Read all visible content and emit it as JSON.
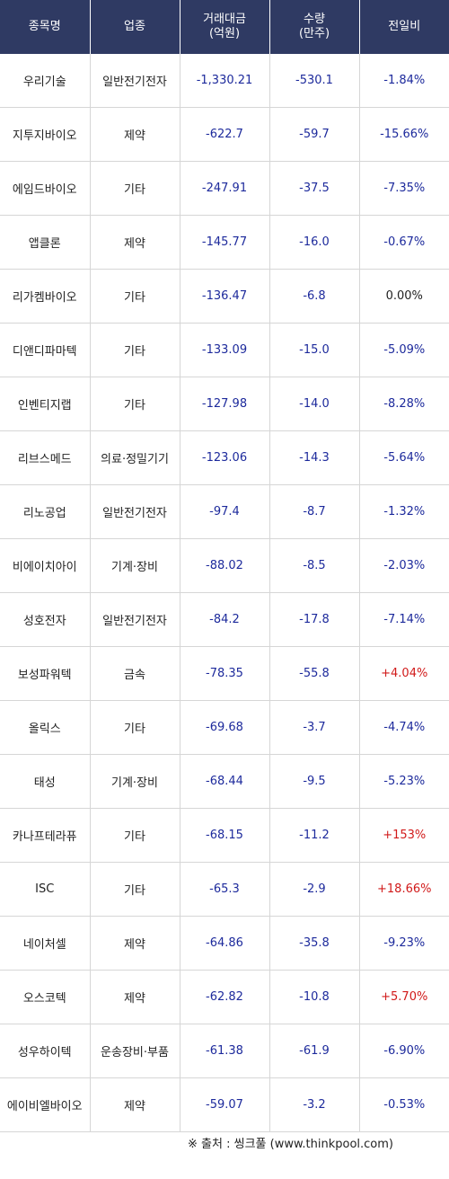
{
  "headers": [
    "종목명",
    "업종",
    "거래대금\n(억원)",
    "수량\n(만주)",
    "전일비"
  ],
  "rows": [
    {
      "name": "우리기술",
      "sector": "일반전기전자",
      "amount": "-1,330.21",
      "qty": "-530.1",
      "change": "-1.84%",
      "dir": "neg"
    },
    {
      "name": "지투지바이오",
      "sector": "제약",
      "amount": "-622.7",
      "qty": "-59.7",
      "change": "-15.66%",
      "dir": "neg"
    },
    {
      "name": "에임드바이오",
      "sector": "기타",
      "amount": "-247.91",
      "qty": "-37.5",
      "change": "-7.35%",
      "dir": "neg"
    },
    {
      "name": "앱클론",
      "sector": "제약",
      "amount": "-145.77",
      "qty": "-16.0",
      "change": "-0.67%",
      "dir": "neg"
    },
    {
      "name": "리가켐바이오",
      "sector": "기타",
      "amount": "-136.47",
      "qty": "-6.8",
      "change": "0.00%",
      "dir": "zero"
    },
    {
      "name": "디앤디파마텍",
      "sector": "기타",
      "amount": "-133.09",
      "qty": "-15.0",
      "change": "-5.09%",
      "dir": "neg"
    },
    {
      "name": "인벤티지랩",
      "sector": "기타",
      "amount": "-127.98",
      "qty": "-14.0",
      "change": "-8.28%",
      "dir": "neg"
    },
    {
      "name": "리브스메드",
      "sector": "의료·정밀기기",
      "amount": "-123.06",
      "qty": "-14.3",
      "change": "-5.64%",
      "dir": "neg"
    },
    {
      "name": "리노공업",
      "sector": "일반전기전자",
      "amount": "-97.4",
      "qty": "-8.7",
      "change": "-1.32%",
      "dir": "neg"
    },
    {
      "name": "비에이치아이",
      "sector": "기계·장비",
      "amount": "-88.02",
      "qty": "-8.5",
      "change": "-2.03%",
      "dir": "neg"
    },
    {
      "name": "성호전자",
      "sector": "일반전기전자",
      "amount": "-84.2",
      "qty": "-17.8",
      "change": "-7.14%",
      "dir": "neg"
    },
    {
      "name": "보성파워텍",
      "sector": "금속",
      "amount": "-78.35",
      "qty": "-55.8",
      "change": "+4.04%",
      "dir": "pos"
    },
    {
      "name": "올릭스",
      "sector": "기타",
      "amount": "-69.68",
      "qty": "-3.7",
      "change": "-4.74%",
      "dir": "neg"
    },
    {
      "name": "태성",
      "sector": "기계·장비",
      "amount": "-68.44",
      "qty": "-9.5",
      "change": "-5.23%",
      "dir": "neg"
    },
    {
      "name": "카나프테라퓨",
      "sector": "기타",
      "amount": "-68.15",
      "qty": "-11.2",
      "change": "+153%",
      "dir": "pos"
    },
    {
      "name": "ISC",
      "sector": "기타",
      "amount": "-65.3",
      "qty": "-2.9",
      "change": "+18.66%",
      "dir": "pos"
    },
    {
      "name": "네이처셀",
      "sector": "제약",
      "amount": "-64.86",
      "qty": "-35.8",
      "change": "-9.23%",
      "dir": "neg"
    },
    {
      "name": "오스코텍",
      "sector": "제약",
      "amount": "-62.82",
      "qty": "-10.8",
      "change": "+5.70%",
      "dir": "pos"
    },
    {
      "name": "성우하이텍",
      "sector": "운송장비·부품",
      "amount": "-61.38",
      "qty": "-61.9",
      "change": "-6.90%",
      "dir": "neg"
    },
    {
      "name": "에이비엘바이오",
      "sector": "제약",
      "amount": "-59.07",
      "qty": "-3.2",
      "change": "-0.53%",
      "dir": "neg"
    }
  ],
  "source": "※ 출처 : 씽크풀 (www.thinkpool.com)",
  "colors": {
    "header_bg": "#2f3a63",
    "negative": "#1d2a9c",
    "positive": "#d11a1a"
  }
}
